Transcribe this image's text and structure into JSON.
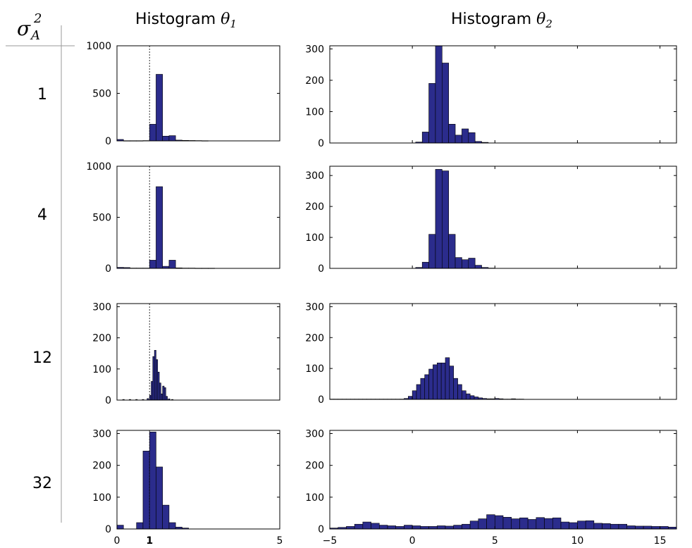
{
  "header": {
    "sigma_symbol": "σ",
    "sigma_sup": "2",
    "sigma_sub": "A",
    "col1_prefix": "Histogram ",
    "col1_sym": "θ",
    "col1_sub": "1",
    "col2_prefix": "Histogram ",
    "col2_sym": "θ",
    "col2_sub": "2"
  },
  "rows": [
    {
      "label": "1"
    },
    {
      "label": "4"
    },
    {
      "label": "12"
    },
    {
      "label": "32"
    }
  ],
  "colors": {
    "bar": "#2b2c8c",
    "bar_edge": "#000000",
    "axis": "#000000",
    "separator": "#9a9a9a"
  },
  "chart_data": [
    {
      "type": "bar",
      "row": "1",
      "column": "Histogram θ1",
      "xlim": [
        0,
        5
      ],
      "ylim": [
        0,
        1000
      ],
      "yticks": [
        0,
        500,
        1000
      ],
      "xticks": [],
      "reference_line": 1,
      "bin_width": 0.2,
      "bins": [
        [
          0.1,
          15
        ],
        [
          0.3,
          2
        ],
        [
          0.5,
          2
        ],
        [
          0.7,
          2
        ],
        [
          0.9,
          3
        ],
        [
          1.1,
          175
        ],
        [
          1.3,
          700
        ],
        [
          1.5,
          50
        ],
        [
          1.7,
          55
        ],
        [
          1.9,
          8
        ],
        [
          2.1,
          5
        ],
        [
          2.3,
          4
        ],
        [
          2.5,
          3
        ],
        [
          2.7,
          2
        ]
      ]
    },
    {
      "type": "bar",
      "row": "1",
      "column": "Histogram θ2",
      "xlim": [
        -5,
        16
      ],
      "ylim": [
        0,
        310
      ],
      "yticks": [
        0,
        100,
        200,
        300
      ],
      "xticks": [],
      "bin_width": 0.4,
      "bins": [
        [
          0.4,
          3
        ],
        [
          0.8,
          35
        ],
        [
          1.2,
          190
        ],
        [
          1.6,
          310
        ],
        [
          2.0,
          255
        ],
        [
          2.4,
          60
        ],
        [
          2.8,
          25
        ],
        [
          3.2,
          45
        ],
        [
          3.6,
          33
        ],
        [
          4.0,
          5
        ],
        [
          4.4,
          2
        ]
      ]
    },
    {
      "type": "bar",
      "row": "4",
      "column": "Histogram θ1",
      "xlim": [
        0,
        5
      ],
      "ylim": [
        0,
        1000
      ],
      "yticks": [
        0,
        500,
        1000
      ],
      "xticks": [],
      "reference_line": 1,
      "bin_width": 0.2,
      "bins": [
        [
          0.1,
          10
        ],
        [
          0.3,
          8
        ],
        [
          0.5,
          3
        ],
        [
          0.7,
          3
        ],
        [
          0.9,
          3
        ],
        [
          1.1,
          80
        ],
        [
          1.3,
          800
        ],
        [
          1.5,
          20
        ],
        [
          1.7,
          80
        ],
        [
          1.9,
          5
        ],
        [
          2.1,
          3
        ],
        [
          2.3,
          3
        ],
        [
          2.5,
          2
        ],
        [
          2.7,
          2
        ],
        [
          2.9,
          2
        ]
      ]
    },
    {
      "type": "bar",
      "row": "4",
      "column": "Histogram θ2",
      "xlim": [
        -5,
        16
      ],
      "ylim": [
        0,
        330
      ],
      "yticks": [
        0,
        100,
        200,
        300
      ],
      "xticks": [],
      "bin_width": 0.4,
      "bins": [
        [
          0.4,
          3
        ],
        [
          0.8,
          20
        ],
        [
          1.2,
          110
        ],
        [
          1.6,
          320
        ],
        [
          2.0,
          315
        ],
        [
          2.4,
          110
        ],
        [
          2.8,
          35
        ],
        [
          3.2,
          28
        ],
        [
          3.6,
          33
        ],
        [
          4.0,
          10
        ],
        [
          4.4,
          3
        ],
        [
          4.8,
          1
        ]
      ]
    },
    {
      "type": "bar",
      "row": "12",
      "column": "Histogram θ1",
      "xlim": [
        0,
        5
      ],
      "ylim": [
        0,
        310
      ],
      "yticks": [
        0,
        100,
        200,
        300
      ],
      "xticks": [],
      "reference_line": 1,
      "bin_width": 0.05,
      "bins": [
        [
          0.2,
          2
        ],
        [
          0.4,
          2
        ],
        [
          0.6,
          2
        ],
        [
          0.8,
          2
        ],
        [
          0.95,
          5
        ],
        [
          1.025,
          15
        ],
        [
          1.075,
          60
        ],
        [
          1.125,
          140
        ],
        [
          1.175,
          160
        ],
        [
          1.225,
          130
        ],
        [
          1.275,
          90
        ],
        [
          1.325,
          55
        ],
        [
          1.375,
          20
        ],
        [
          1.425,
          45
        ],
        [
          1.475,
          40
        ],
        [
          1.525,
          12
        ],
        [
          1.6,
          4
        ],
        [
          1.7,
          2
        ]
      ]
    },
    {
      "type": "bar",
      "row": "12",
      "column": "Histogram θ2",
      "xlim": [
        -5,
        16
      ],
      "ylim": [
        0,
        310
      ],
      "yticks": [
        0,
        100,
        200,
        300
      ],
      "xticks": [],
      "bin_width": 0.25,
      "bins": [
        [
          -4.875,
          1
        ],
        [
          -4.625,
          1
        ],
        [
          -4.375,
          1
        ],
        [
          -4.125,
          1
        ],
        [
          -3.875,
          1
        ],
        [
          -3.625,
          1
        ],
        [
          -3.375,
          1
        ],
        [
          -3.125,
          1
        ],
        [
          -2.875,
          1
        ],
        [
          -2.625,
          1
        ],
        [
          -2.375,
          1
        ],
        [
          -2.125,
          1
        ],
        [
          -1.875,
          1
        ],
        [
          -1.625,
          1
        ],
        [
          -1.375,
          1
        ],
        [
          -1.125,
          1
        ],
        [
          -0.875,
          1
        ],
        [
          -0.625,
          1
        ],
        [
          -0.375,
          3
        ],
        [
          -0.125,
          10
        ],
        [
          0.125,
          28
        ],
        [
          0.375,
          48
        ],
        [
          0.625,
          68
        ],
        [
          0.875,
          80
        ],
        [
          1.125,
          98
        ],
        [
          1.375,
          112
        ],
        [
          1.625,
          118
        ],
        [
          1.875,
          118
        ],
        [
          2.125,
          135
        ],
        [
          2.375,
          108
        ],
        [
          2.625,
          68
        ],
        [
          2.875,
          48
        ],
        [
          3.125,
          28
        ],
        [
          3.375,
          18
        ],
        [
          3.625,
          12
        ],
        [
          3.875,
          8
        ],
        [
          4.125,
          5
        ],
        [
          4.375,
          3
        ],
        [
          4.625,
          2
        ],
        [
          4.875,
          2
        ],
        [
          5.125,
          3
        ],
        [
          5.375,
          2
        ],
        [
          5.625,
          1
        ],
        [
          5.875,
          1
        ],
        [
          6.125,
          2
        ],
        [
          6.375,
          1
        ],
        [
          6.625,
          1
        ]
      ]
    },
    {
      "type": "bar",
      "row": "32",
      "column": "Histogram θ1",
      "xlim": [
        0,
        5
      ],
      "ylim": [
        0,
        310
      ],
      "yticks": [
        0,
        100,
        200,
        300
      ],
      "xticks": [
        0,
        1,
        5
      ],
      "reference_line": 1,
      "bin_width": 0.2,
      "bins": [
        [
          0.1,
          12
        ],
        [
          0.5,
          0
        ],
        [
          0.7,
          20
        ],
        [
          0.9,
          245
        ],
        [
          1.1,
          305
        ],
        [
          1.3,
          195
        ],
        [
          1.5,
          75
        ],
        [
          1.7,
          20
        ],
        [
          1.9,
          6
        ],
        [
          2.1,
          3
        ]
      ]
    },
    {
      "type": "bar",
      "row": "32",
      "column": "Histogram θ2",
      "xlim": [
        -5,
        16
      ],
      "ylim": [
        0,
        310
      ],
      "yticks": [
        0,
        100,
        200,
        300
      ],
      "xticks": [
        -5,
        0,
        5,
        10,
        15
      ],
      "bin_width": 0.5,
      "bins": [
        [
          -4.75,
          3
        ],
        [
          -4.25,
          5
        ],
        [
          -3.75,
          8
        ],
        [
          -3.25,
          15
        ],
        [
          -2.75,
          22
        ],
        [
          -2.25,
          18
        ],
        [
          -1.75,
          12
        ],
        [
          -1.25,
          10
        ],
        [
          -0.75,
          8
        ],
        [
          -0.25,
          12
        ],
        [
          0.25,
          10
        ],
        [
          0.75,
          8
        ],
        [
          1.25,
          8
        ],
        [
          1.75,
          10
        ],
        [
          2.25,
          9
        ],
        [
          2.75,
          12
        ],
        [
          3.25,
          15
        ],
        [
          3.75,
          25
        ],
        [
          4.25,
          32
        ],
        [
          4.75,
          45
        ],
        [
          5.25,
          42
        ],
        [
          5.75,
          37
        ],
        [
          6.25,
          32
        ],
        [
          6.75,
          35
        ],
        [
          7.25,
          30
        ],
        [
          7.75,
          36
        ],
        [
          8.25,
          33
        ],
        [
          8.75,
          35
        ],
        [
          9.25,
          22
        ],
        [
          9.75,
          20
        ],
        [
          10.25,
          25
        ],
        [
          10.75,
          26
        ],
        [
          11.25,
          18
        ],
        [
          11.75,
          17
        ],
        [
          12.25,
          15
        ],
        [
          12.75,
          15
        ],
        [
          13.25,
          10
        ],
        [
          13.75,
          9
        ],
        [
          14.25,
          9
        ],
        [
          14.75,
          8
        ],
        [
          15.25,
          8
        ],
        [
          15.75,
          6
        ]
      ]
    }
  ]
}
